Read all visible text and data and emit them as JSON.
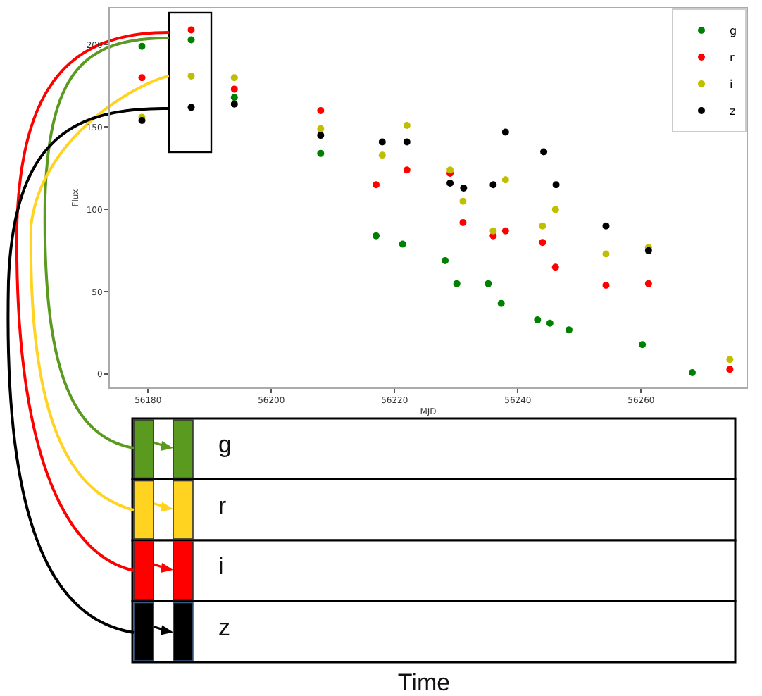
{
  "chart_data": {
    "type": "scatter",
    "xlabel": "MJD",
    "ylabel": "Flux",
    "xlim": [
      56173.8,
      56277.1
    ],
    "xticks": [
      56180,
      56200,
      56220,
      56240,
      56260
    ],
    "ylim": [
      -8,
      222
    ],
    "yticks": [
      0,
      50,
      100,
      150,
      200
    ],
    "grid": false,
    "legend": "top right",
    "marker": "circle",
    "series": [
      {
        "name": "g",
        "color": "#008000",
        "x": [
          56179,
          56187,
          56194,
          56208,
          56217,
          56221.3,
          56228.2,
          56230.1,
          56235.2,
          56237.3,
          56243.2,
          56245.2,
          56248.3,
          56260.2,
          56268.3
        ],
        "values": [
          199,
          203,
          168,
          134,
          84,
          79,
          69,
          55,
          55,
          43,
          33,
          31,
          27,
          18,
          1
        ]
      },
      {
        "name": "r",
        "color": "#ff0000",
        "x": [
          56179,
          56187,
          56194,
          56208,
          56217,
          56222,
          56229,
          56231.1,
          56236,
          56238,
          56244,
          56246.1,
          56254.3,
          56261.2,
          56274.4
        ],
        "values": [
          180,
          209,
          173,
          160,
          115,
          124,
          122,
          92,
          84,
          87,
          80,
          65,
          54,
          55,
          3
        ]
      },
      {
        "name": "i",
        "color": "#bfbf00",
        "x": [
          56179,
          56187,
          56194,
          56208,
          56218,
          56222,
          56229,
          56231.1,
          56236,
          56238,
          56244,
          56246.1,
          56254.3,
          56261.2,
          56274.4
        ],
        "values": [
          156,
          181,
          180,
          149,
          133,
          151,
          124,
          105,
          87,
          118,
          90,
          100,
          73,
          77,
          9
        ]
      },
      {
        "name": "z",
        "color": "#000000",
        "x": [
          56179,
          56187,
          56194,
          56208,
          56218,
          56222,
          56229,
          56231.2,
          56236,
          56238,
          56244.2,
          56246.2,
          56254.3,
          56261.2
        ],
        "values": [
          154,
          162,
          164,
          145,
          141,
          141,
          116,
          113,
          115,
          147,
          135,
          115,
          90,
          75
        ]
      }
    ],
    "annotations": [
      "g",
      "r",
      "i",
      "z",
      "Time"
    ]
  }
}
